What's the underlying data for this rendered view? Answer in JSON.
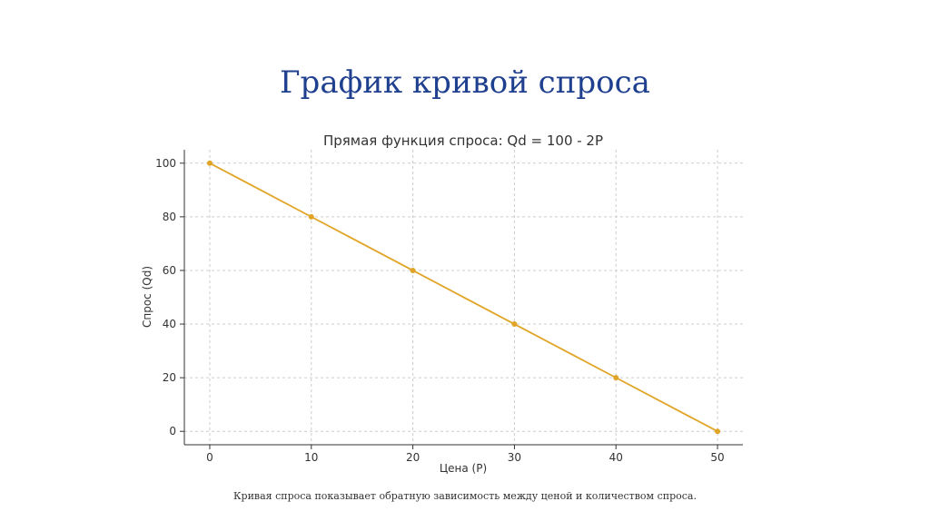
{
  "slide": {
    "title": "График кривой спроса",
    "caption": "Кривая спроса показывает обратную зависимость между ценой и количеством спроса."
  },
  "chart_data": {
    "type": "line",
    "title": "Прямая функция спроса: Qd = 100 - 2P",
    "xlabel": "Цена (P)",
    "ylabel": "Спрос (Qd)",
    "xlim": [
      -2.5,
      52.5
    ],
    "ylim": [
      -5,
      105
    ],
    "xticks": [
      0,
      10,
      20,
      30,
      40,
      50
    ],
    "yticks": [
      0,
      20,
      40,
      60,
      80,
      100
    ],
    "grid": true,
    "series": [
      {
        "color": "#e0a526",
        "x": [
          0,
          10,
          20,
          30,
          40,
          50
        ],
        "y": [
          100,
          80,
          60,
          40,
          20,
          0
        ]
      }
    ]
  }
}
